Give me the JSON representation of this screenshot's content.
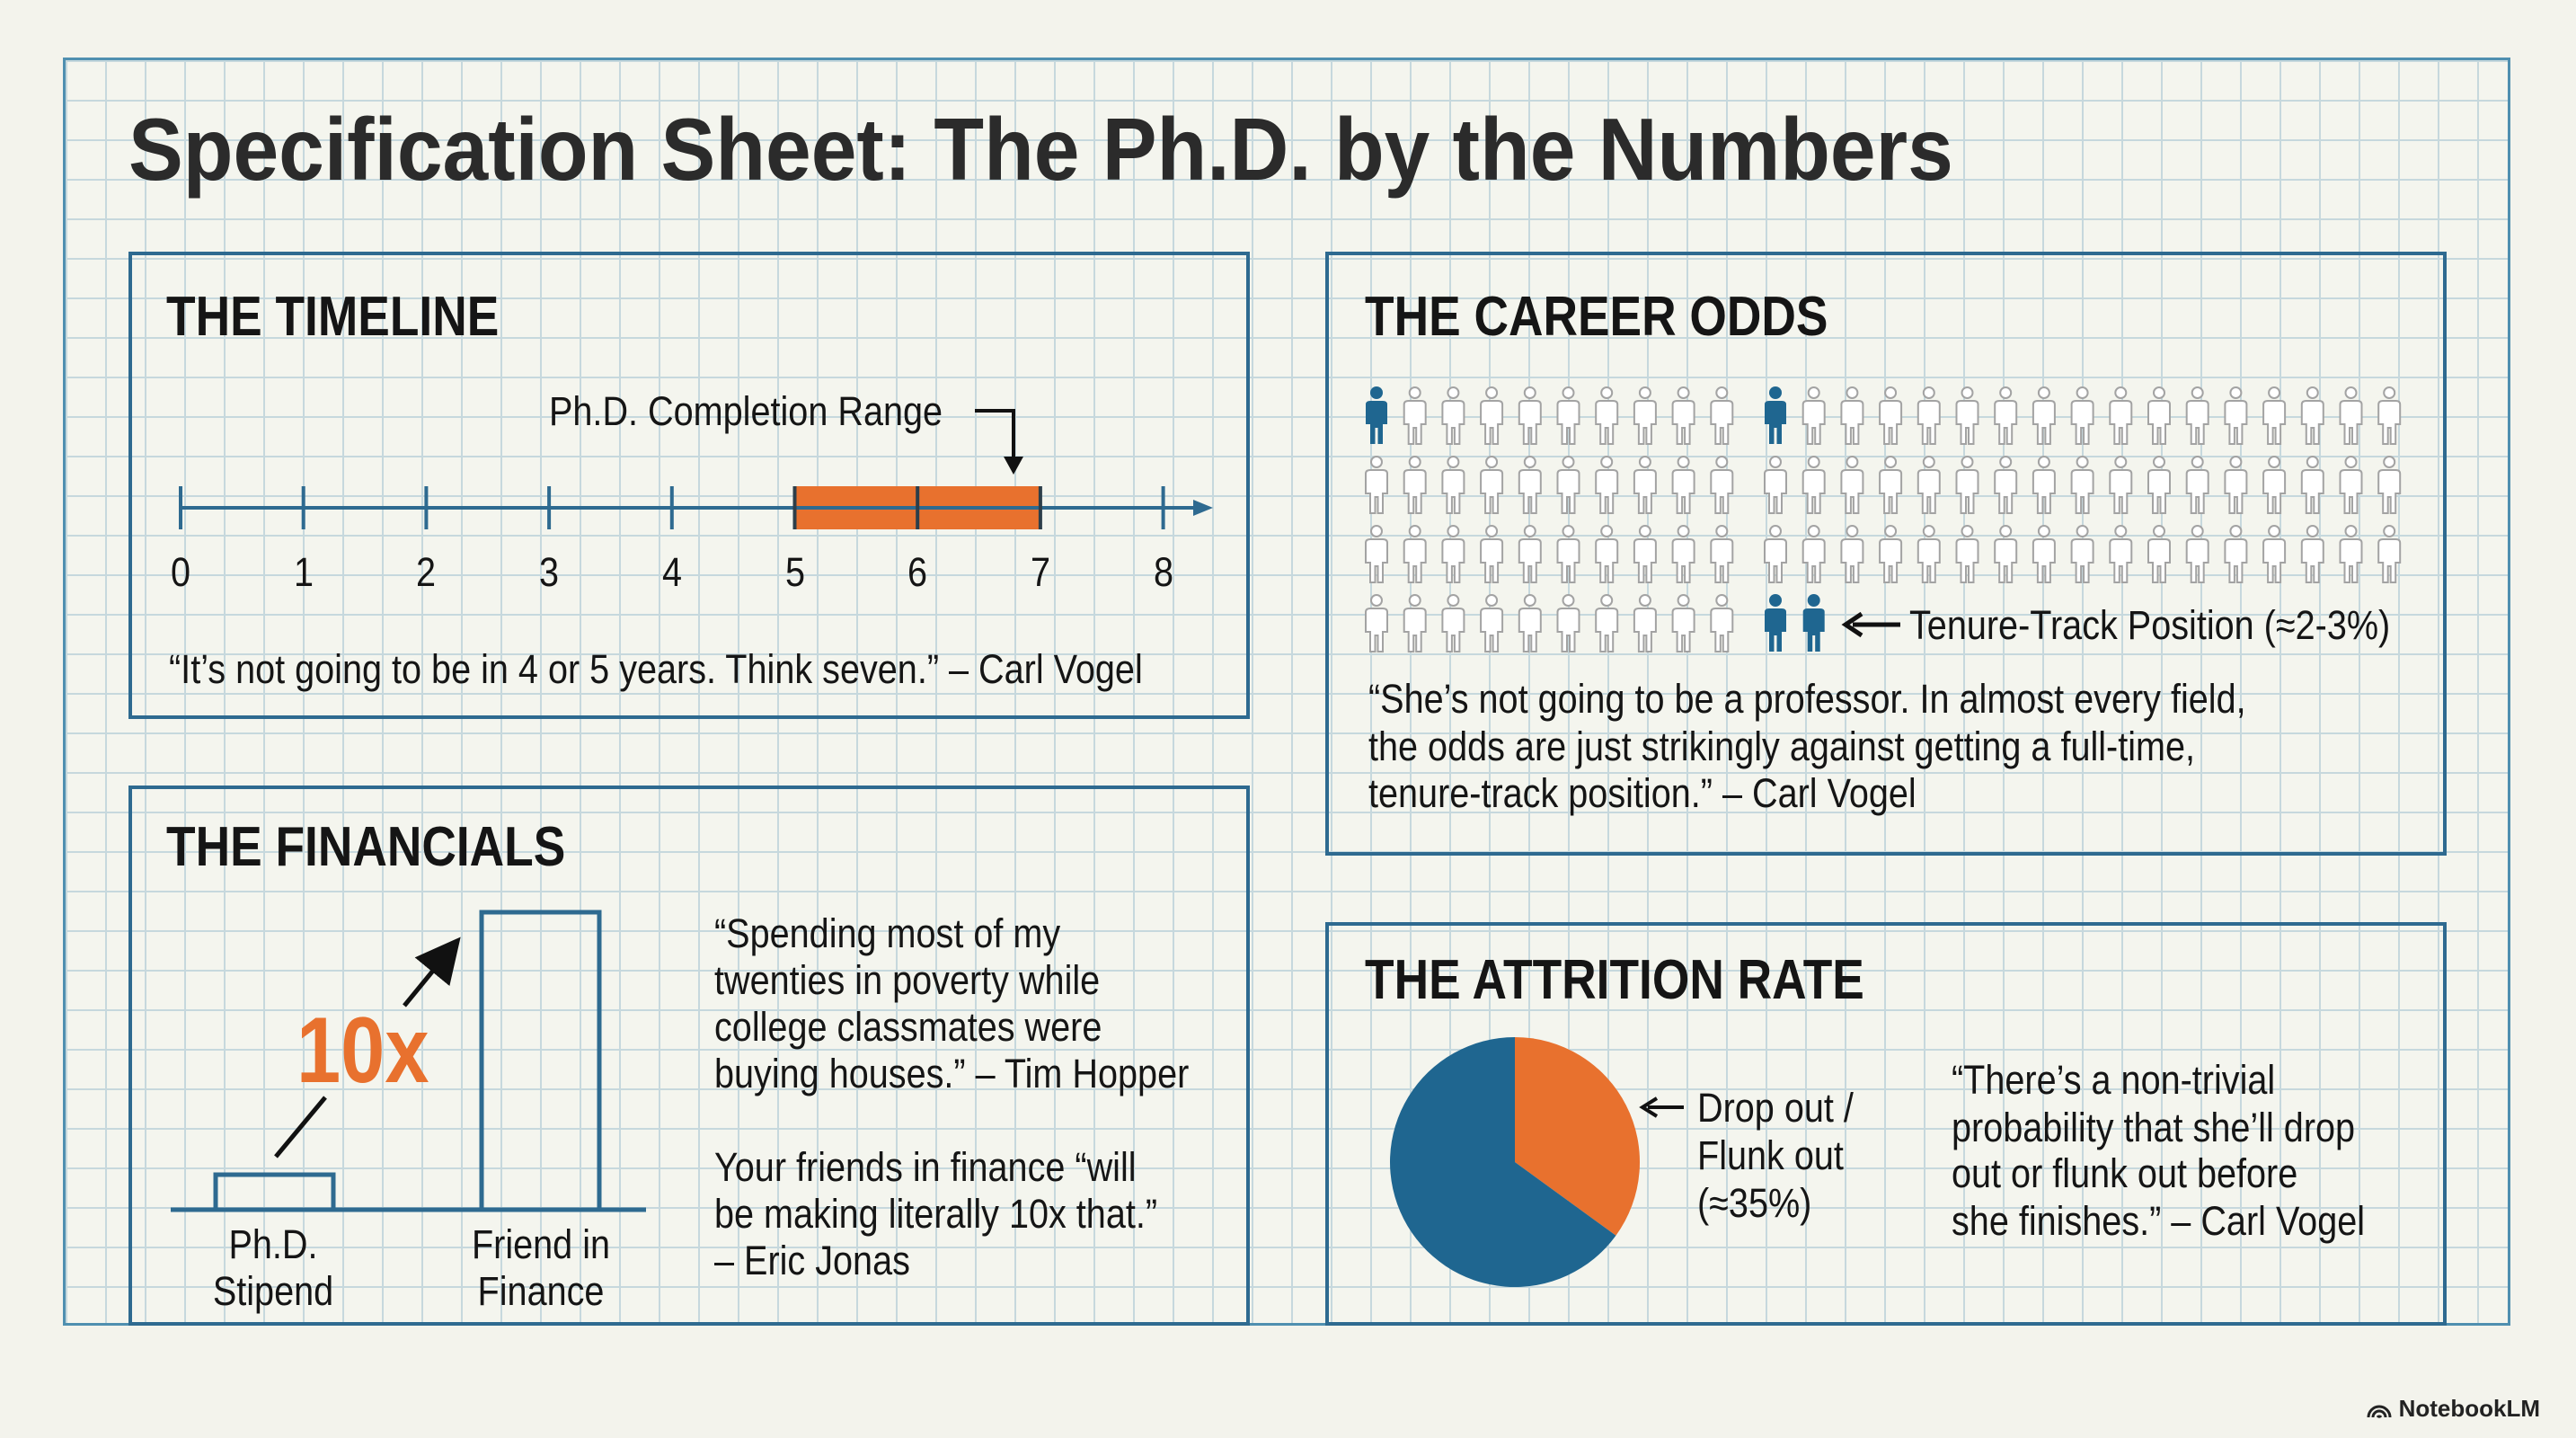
{
  "title": "Specification Sheet: The Ph.D. by the Numbers",
  "colors": {
    "blue": "#1f6690",
    "orange": "#e8712e",
    "frame": "#2e6a90",
    "grid": "#c6d8dd"
  },
  "timeline": {
    "heading": "THE TIMELINE",
    "range_label": "Ph.D. Completion Range",
    "ticks": [
      "0",
      "1",
      "2",
      "3",
      "4",
      "5",
      "6",
      "7",
      "8"
    ],
    "range_years": [
      5,
      7
    ],
    "quote": "“It’s not going to be in 4 or 5 years. Think seven.” – Carl Vogel"
  },
  "financials": {
    "heading": "THE FINANCIALS",
    "multiplier": "10x",
    "bars": [
      {
        "label_lines": [
          "Ph.D.",
          "Stipend"
        ],
        "relative_value": 1
      },
      {
        "label_lines": [
          "Friend in",
          "Finance"
        ],
        "relative_value": 10
      }
    ],
    "quote1_lines": [
      "“Spending most of my",
      "twenties in poverty while",
      "college classmates were",
      "buying houses.” – Tim Hopper"
    ],
    "quote2_lines": [
      "Your friends in finance “will",
      "be making literally 10x that.”",
      "– Eric Jonas"
    ]
  },
  "career": {
    "heading": "THE CAREER ODDS",
    "pictogram": {
      "rows": 4,
      "left_cols": 10,
      "right_cols": 17,
      "right_last_row_count": 2,
      "highlighted": [
        [
          "left",
          0,
          0
        ],
        [
          "right",
          0,
          0
        ],
        [
          "right",
          3,
          0
        ],
        [
          "right",
          3,
          1
        ]
      ]
    },
    "tenure_label": "Tenure-Track Position (≈2-3%)",
    "quote_lines": [
      "“She’s not going to be a professor. In almost every field,",
      "the odds are just strikingly against getting a full-time,",
      "tenure-track position.” – Carl Vogel"
    ]
  },
  "attrition": {
    "heading": "THE ATTRITION RATE",
    "label_lines": [
      "Drop out /",
      "Flunk out",
      "(≈35%)"
    ],
    "quote_lines": [
      "“There’s a non-trivial",
      "probability that she’ll drop",
      "out or flunk out before",
      "she finishes.” – Carl Vogel"
    ]
  },
  "chart_data": [
    {
      "type": "line",
      "title": "THE TIMELINE",
      "x_ticks": [
        0,
        1,
        2,
        3,
        4,
        5,
        6,
        7,
        8
      ],
      "highlight_range": [
        5,
        7
      ],
      "annotation": "Ph.D. Completion Range"
    },
    {
      "type": "bar",
      "title": "THE FINANCIALS",
      "categories": [
        "Ph.D. Stipend",
        "Friend in Finance"
      ],
      "values": [
        1,
        10
      ],
      "annotation": "10x"
    },
    {
      "type": "pie",
      "title": "THE ATTRITION RATE",
      "slices": [
        {
          "label": "Drop out / Flunk out (≈35%)",
          "value": 35,
          "color": "#e8712e"
        },
        {
          "label": "",
          "value": 65,
          "color": "#1f6690"
        }
      ]
    }
  ],
  "brand": "NotebookLM"
}
